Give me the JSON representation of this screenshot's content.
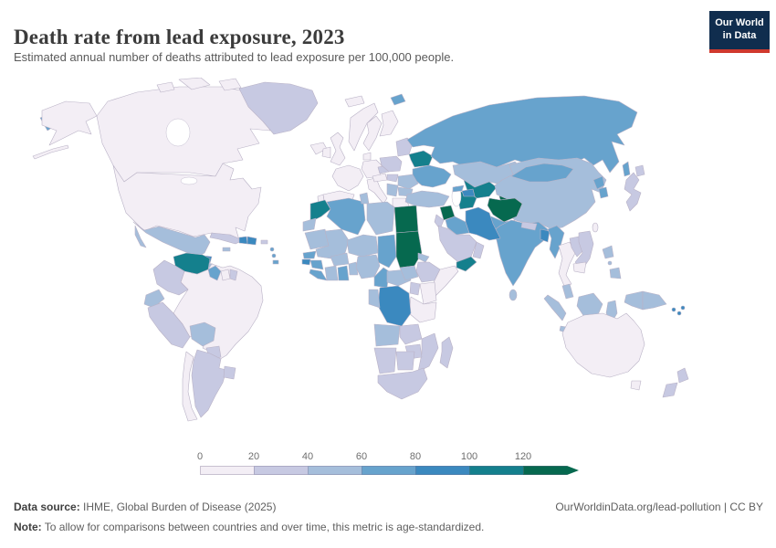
{
  "header": {
    "title": "Death rate from lead exposure, 2023",
    "subtitle": "Estimated annual number of deaths attributed to lead exposure per 100,000 people."
  },
  "logo": {
    "line1": "Our World",
    "line2": "in Data",
    "bg_color": "#102d4e",
    "accent_color": "#d0392d"
  },
  "legend": {
    "ticks": [
      "0",
      "20",
      "40",
      "60",
      "80",
      "100",
      "120"
    ]
  },
  "footer": {
    "source_label": "Data source:",
    "source_text": " IHME, Global Burden of Disease (2025)",
    "link_text": "OurWorldinData.org/lead-pollution | CC BY",
    "note_label": "Note:",
    "note_text": " To allow for comparisons between countries and over time, this metric is age-standardized."
  },
  "chart_data": {
    "type": "choropleth_map",
    "title": "Death rate from lead exposure, 2023",
    "unit": "deaths per 100,000 people",
    "year": 2023,
    "legend_ticks": [
      0,
      20,
      40,
      60,
      80,
      100,
      120
    ],
    "open_ended_max": true,
    "border_color": "#b9b2c6",
    "bins": [
      {
        "label": "0-20",
        "color": "#f3eef5"
      },
      {
        "label": "20-40",
        "color": "#c7c9e2"
      },
      {
        "label": "40-60",
        "color": "#a5bedb"
      },
      {
        "label": "60-80",
        "color": "#67a3cd"
      },
      {
        "label": "80-100",
        "color": "#3b89bf"
      },
      {
        "label": "100-120",
        "color": "#14808d"
      },
      {
        "label": "120+",
        "color": "#06694f"
      }
    ],
    "countries": [
      {
        "region": "united-states",
        "name": "United States",
        "bin": "0-20",
        "value_est": 6
      },
      {
        "region": "canada",
        "name": "Canada",
        "bin": "0-20",
        "value_est": 5
      },
      {
        "region": "greenland",
        "name": "Greenland",
        "bin": "20-40",
        "value_est": 25
      },
      {
        "region": "mexico",
        "name": "Mexico",
        "bin": "40-60",
        "value_est": 48
      },
      {
        "region": "guatemala",
        "name": "Guatemala",
        "bin": "40-60",
        "value_est": 50
      },
      {
        "region": "honduras",
        "name": "Honduras",
        "bin": "80-100",
        "value_est": 85
      },
      {
        "region": "nicaragua",
        "name": "Nicaragua",
        "bin": "40-60",
        "value_est": 48
      },
      {
        "region": "costa-rica",
        "name": "Costa Rica",
        "bin": "40-60",
        "value_est": 45
      },
      {
        "region": "panama",
        "name": "Panama",
        "bin": "60-80",
        "value_est": 62
      },
      {
        "region": "cuba",
        "name": "Cuba",
        "bin": "20-40",
        "value_est": 28
      },
      {
        "region": "jamaica",
        "name": "Jamaica",
        "bin": "40-60",
        "value_est": 45
      },
      {
        "region": "haiti",
        "name": "Haiti",
        "bin": "80-100",
        "value_est": 90
      },
      {
        "region": "dominican-republic",
        "name": "Dominican Republic",
        "bin": "80-100",
        "value_est": 88
      },
      {
        "region": "puerto-rico",
        "name": "Puerto Rico",
        "bin": "20-40",
        "value_est": 25
      },
      {
        "region": "lesser-antilles",
        "name": "Lesser Antilles",
        "bin": "60-80",
        "value_est": 65
      },
      {
        "region": "trinidad-and-tobago",
        "name": "Trinidad and Tobago",
        "bin": "60-80",
        "value_est": 65
      },
      {
        "region": "venezuela",
        "name": "Venezuela",
        "bin": "100-120",
        "value_est": 108
      },
      {
        "region": "colombia",
        "name": "Colombia",
        "bin": "20-40",
        "value_est": 28
      },
      {
        "region": "ecuador",
        "name": "Ecuador",
        "bin": "40-60",
        "value_est": 48
      },
      {
        "region": "peru",
        "name": "Peru",
        "bin": "20-40",
        "value_est": 30
      },
      {
        "region": "brazil",
        "name": "Brazil",
        "bin": "0-20",
        "value_est": 12
      },
      {
        "region": "bolivia",
        "name": "Bolivia",
        "bin": "40-60",
        "value_est": 50
      },
      {
        "region": "paraguay",
        "name": "Paraguay",
        "bin": "20-40",
        "value_est": 30
      },
      {
        "region": "chile",
        "name": "Chile",
        "bin": "0-20",
        "value_est": 10
      },
      {
        "region": "argentina",
        "name": "Argentina",
        "bin": "20-40",
        "value_est": 28
      },
      {
        "region": "uruguay",
        "name": "Uruguay",
        "bin": "20-40",
        "value_est": 28
      },
      {
        "region": "guyana",
        "name": "Guyana",
        "bin": "60-80",
        "value_est": 65
      },
      {
        "region": "suriname",
        "name": "Suriname",
        "bin": "0-20",
        "value_est": 15
      },
      {
        "region": "french-guiana",
        "name": "French Guiana",
        "bin": "20-40",
        "value_est": 25
      },
      {
        "region": "iceland",
        "name": "Iceland",
        "bin": "0-20",
        "value_est": 4
      },
      {
        "region": "united-kingdom",
        "name": "United Kingdom",
        "bin": "0-20",
        "value_est": 4
      },
      {
        "region": "ireland",
        "name": "Ireland",
        "bin": "0-20",
        "value_est": 4
      },
      {
        "region": "norway",
        "name": "Norway",
        "bin": "0-20",
        "value_est": 3
      },
      {
        "region": "sweden",
        "name": "Sweden",
        "bin": "0-20",
        "value_est": 3
      },
      {
        "region": "finland",
        "name": "Finland",
        "bin": "0-20",
        "value_est": 3
      },
      {
        "region": "denmark",
        "name": "Denmark",
        "bin": "0-20",
        "value_est": 3
      },
      {
        "region": "germany",
        "name": "Germany",
        "bin": "0-20",
        "value_est": 4
      },
      {
        "region": "france",
        "name": "France",
        "bin": "0-20",
        "value_est": 3
      },
      {
        "region": "spain",
        "name": "Spain",
        "bin": "0-20",
        "value_est": 4
      },
      {
        "region": "portugal",
        "name": "Portugal",
        "bin": "0-20",
        "value_est": 5
      },
      {
        "region": "italy",
        "name": "Italy",
        "bin": "0-20",
        "value_est": 6
      },
      {
        "region": "austria",
        "name": "Austria",
        "bin": "0-20",
        "value_est": 4
      },
      {
        "region": "czechia",
        "name": "Czechia",
        "bin": "20-40",
        "value_est": 22
      },
      {
        "region": "hungary",
        "name": "Hungary",
        "bin": "20-40",
        "value_est": 32
      },
      {
        "region": "poland",
        "name": "Poland",
        "bin": "20-40",
        "value_est": 30
      },
      {
        "region": "baltic-states",
        "name": "Baltic states",
        "bin": "20-40",
        "value_est": 30
      },
      {
        "region": "belarus",
        "name": "Belarus",
        "bin": "100-120",
        "value_est": 108
      },
      {
        "region": "ukraine",
        "name": "Ukraine",
        "bin": "60-80",
        "value_est": 68
      },
      {
        "region": "romania",
        "name": "Romania",
        "bin": "40-60",
        "value_est": 45
      },
      {
        "region": "serbia-balkans",
        "name": "Serbia and Western Balkans",
        "bin": "40-60",
        "value_est": 50
      },
      {
        "region": "bulgaria",
        "name": "Bulgaria",
        "bin": "40-60",
        "value_est": 48
      },
      {
        "region": "greece",
        "name": "Greece",
        "bin": "0-20",
        "value_est": 12
      },
      {
        "region": "russia",
        "name": "Russia",
        "bin": "60-80",
        "value_est": 70
      },
      {
        "region": "kazakhstan",
        "name": "Kazakhstan",
        "bin": "40-60",
        "value_est": 45
      },
      {
        "region": "uzbekistan",
        "name": "Uzbekistan",
        "bin": "100-120",
        "value_est": 112
      },
      {
        "region": "turkmenistan",
        "name": "Turkmenistan",
        "bin": "100-120",
        "value_est": 110
      },
      {
        "region": "kyrgyzstan",
        "name": "Kyrgyzstan",
        "bin": "100-120",
        "value_est": 105
      },
      {
        "region": "tajikistan",
        "name": "Tajikistan",
        "bin": "120+",
        "value_est": 125
      },
      {
        "region": "afghanistan",
        "name": "Afghanistan",
        "bin": "120+",
        "value_est": 135
      },
      {
        "region": "pakistan",
        "name": "Pakistan",
        "bin": "60-80",
        "value_est": 70
      },
      {
        "region": "india",
        "name": "India",
        "bin": "60-80",
        "value_est": 72
      },
      {
        "region": "nepal",
        "name": "Nepal",
        "bin": "20-40",
        "value_est": 35
      },
      {
        "region": "bangladesh",
        "name": "Bangladesh",
        "bin": "80-100",
        "value_est": 88
      },
      {
        "region": "sri-lanka",
        "name": "Sri Lanka",
        "bin": "40-60",
        "value_est": 45
      },
      {
        "region": "myanmar",
        "name": "Myanmar",
        "bin": "60-80",
        "value_est": 68
      },
      {
        "region": "china",
        "name": "China",
        "bin": "40-60",
        "value_est": 48
      },
      {
        "region": "mongolia",
        "name": "Mongolia",
        "bin": "60-80",
        "value_est": 70
      },
      {
        "region": "north-korea",
        "name": "North Korea",
        "bin": "60-80",
        "value_est": 70
      },
      {
        "region": "south-korea",
        "name": "South Korea",
        "bin": "60-80",
        "value_est": 65
      },
      {
        "region": "japan",
        "name": "Japan",
        "bin": "20-40",
        "value_est": 22
      },
      {
        "region": "taiwan",
        "name": "Taiwan",
        "bin": "0-20",
        "value_est": 15
      },
      {
        "region": "turkey",
        "name": "Turkey",
        "bin": "40-60",
        "value_est": 45
      },
      {
        "region": "georgia",
        "name": "Georgia",
        "bin": "60-80",
        "value_est": 62
      },
      {
        "region": "armenia-azerbaijan",
        "name": "Armenia and Azerbaijan",
        "bin": "80-100",
        "value_est": 85
      },
      {
        "region": "syria",
        "name": "Syria",
        "bin": "120+",
        "value_est": 132
      },
      {
        "region": "iraq",
        "name": "Iraq",
        "bin": "60-80",
        "value_est": 70
      },
      {
        "region": "iran",
        "name": "Iran",
        "bin": "80-100",
        "value_est": 85
      },
      {
        "region": "jordan-israel",
        "name": "Jordan and Israel",
        "bin": "20-40",
        "value_est": 25
      },
      {
        "region": "saudi-arabia",
        "name": "Saudi Arabia",
        "bin": "20-40",
        "value_est": 30
      },
      {
        "region": "yemen",
        "name": "Yemen",
        "bin": "100-120",
        "value_est": 110
      },
      {
        "region": "oman",
        "name": "Oman",
        "bin": "20-40",
        "value_est": 28
      },
      {
        "region": "morocco",
        "name": "Morocco",
        "bin": "100-120",
        "value_est": 105
      },
      {
        "region": "western-sahara",
        "name": "Western Sahara",
        "bin": "40-60",
        "value_est": 45
      },
      {
        "region": "algeria",
        "name": "Algeria",
        "bin": "60-80",
        "value_est": 65
      },
      {
        "region": "tunisia",
        "name": "Tunisia",
        "bin": "40-60",
        "value_est": 45
      },
      {
        "region": "libya",
        "name": "Libya",
        "bin": "40-60",
        "value_est": 48
      },
      {
        "region": "egypt",
        "name": "Egypt",
        "bin": "120+",
        "value_est": 128
      },
      {
        "region": "sudan",
        "name": "Sudan",
        "bin": "120+",
        "value_est": 130
      },
      {
        "region": "eritrea",
        "name": "Eritrea",
        "bin": "40-60",
        "value_est": 50
      },
      {
        "region": "mauritania",
        "name": "Mauritania",
        "bin": "40-60",
        "value_est": 45
      },
      {
        "region": "mali",
        "name": "Mali",
        "bin": "40-60",
        "value_est": 48
      },
      {
        "region": "niger",
        "name": "Niger",
        "bin": "40-60",
        "value_est": 48
      },
      {
        "region": "chad",
        "name": "Chad",
        "bin": "60-80",
        "value_est": 62
      },
      {
        "region": "senegal",
        "name": "Senegal",
        "bin": "60-80",
        "value_est": 65
      },
      {
        "region": "guinea-bissau",
        "name": "Guinea-Bissau",
        "bin": "80-100",
        "value_est": 85
      },
      {
        "region": "guinea",
        "name": "Guinea",
        "bin": "60-80",
        "value_est": 68
      },
      {
        "region": "sierra-leone-liberia",
        "name": "Sierra Leone and Liberia",
        "bin": "60-80",
        "value_est": 65
      },
      {
        "region": "ivory-coast",
        "name": "Cote d'Ivoire",
        "bin": "40-60",
        "value_est": 48
      },
      {
        "region": "ghana",
        "name": "Ghana",
        "bin": "60-80",
        "value_est": 65
      },
      {
        "region": "burkina-faso",
        "name": "Burkina Faso",
        "bin": "40-60",
        "value_est": 50
      },
      {
        "region": "togo-benin",
        "name": "Togo and Benin",
        "bin": "40-60",
        "value_est": 50
      },
      {
        "region": "nigeria",
        "name": "Nigeria",
        "bin": "40-60",
        "value_est": 50
      },
      {
        "region": "cameroon",
        "name": "Cameroon",
        "bin": "60-80",
        "value_est": 62
      },
      {
        "region": "central-african-republic",
        "name": "Central African Republic",
        "bin": "40-60",
        "value_est": 55
      },
      {
        "region": "south-sudan",
        "name": "South Sudan",
        "bin": "40-60",
        "value_est": 50
      },
      {
        "region": "ethiopia",
        "name": "Ethiopia",
        "bin": "20-40",
        "value_est": 30
      },
      {
        "region": "somalia",
        "name": "Somalia",
        "bin": "0-20",
        "value_est": 15
      },
      {
        "region": "kenya",
        "name": "Kenya",
        "bin": "0-20",
        "value_est": 12
      },
      {
        "region": "uganda",
        "name": "Uganda",
        "bin": "20-40",
        "value_est": 32
      },
      {
        "region": "tanzania",
        "name": "Tanzania",
        "bin": "0-20",
        "value_est": 12
      },
      {
        "region": "dr-congo",
        "name": "Democratic Republic of Congo",
        "bin": "80-100",
        "value_est": 85
      },
      {
        "region": "congo-gabon",
        "name": "Congo and Gabon",
        "bin": "40-60",
        "value_est": 48
      },
      {
        "region": "angola",
        "name": "Angola",
        "bin": "40-60",
        "value_est": 48
      },
      {
        "region": "zambia",
        "name": "Zambia",
        "bin": "20-40",
        "value_est": 30
      },
      {
        "region": "mozambique",
        "name": "Mozambique",
        "bin": "20-40",
        "value_est": 32
      },
      {
        "region": "zimbabwe",
        "name": "Zimbabwe",
        "bin": "20-40",
        "value_est": 33
      },
      {
        "region": "namibia",
        "name": "Namibia",
        "bin": "20-40",
        "value_est": 30
      },
      {
        "region": "botswana",
        "name": "Botswana",
        "bin": "20-40",
        "value_est": 30
      },
      {
        "region": "south-africa",
        "name": "South Africa",
        "bin": "20-40",
        "value_est": 32
      },
      {
        "region": "madagascar",
        "name": "Madagascar",
        "bin": "20-40",
        "value_est": 30
      },
      {
        "region": "thailand",
        "name": "Thailand",
        "bin": "0-20",
        "value_est": 15
      },
      {
        "region": "laos",
        "name": "Laos",
        "bin": "20-40",
        "value_est": 30
      },
      {
        "region": "vietnam",
        "name": "Vietnam",
        "bin": "20-40",
        "value_est": 30
      },
      {
        "region": "cambodia",
        "name": "Cambodia",
        "bin": "0-20",
        "value_est": 18
      },
      {
        "region": "malaysia",
        "name": "Malaysia",
        "bin": "40-60",
        "value_est": 45
      },
      {
        "region": "indonesia",
        "name": "Indonesia",
        "bin": "40-60",
        "value_est": 48
      },
      {
        "region": "philippines",
        "name": "Philippines",
        "bin": "40-60",
        "value_est": 48
      },
      {
        "region": "papua-new-guinea",
        "name": "Papua New Guinea",
        "bin": "40-60",
        "value_est": 50
      },
      {
        "region": "solomon-islands",
        "name": "Solomon Islands",
        "bin": "80-100",
        "value_est": 85
      },
      {
        "region": "australia",
        "name": "Australia",
        "bin": "0-20",
        "value_est": 5
      },
      {
        "region": "new-zealand",
        "name": "New Zealand",
        "bin": "20-40",
        "value_est": 25
      }
    ]
  }
}
